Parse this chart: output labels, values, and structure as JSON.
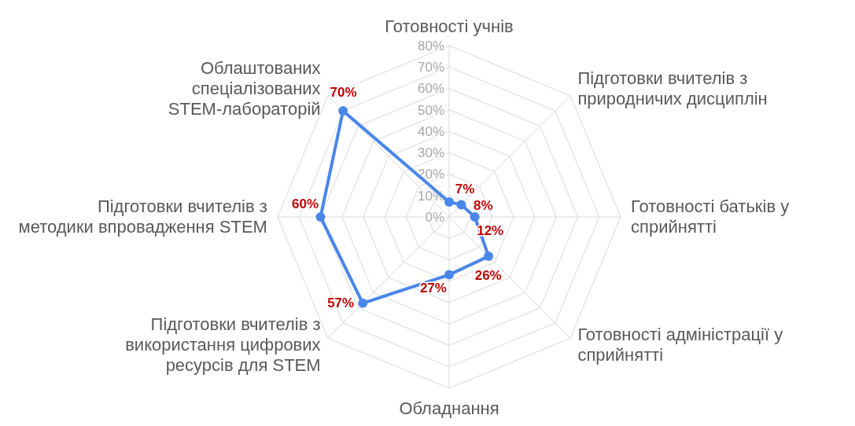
{
  "chart_data": {
    "type": "radar",
    "categories": [
      "Готовності учнів",
      "Підготовки вчителів з природничих дисциплін",
      "Готовності батьків у сприйнятті",
      "Готовності адміністрації у сприйнятті",
      "Обладнання",
      "Підготовки вчителів з використання цифрових ресурсів для STEM",
      "Підготовки вчителів з методики впровадження STEM",
      "Облаштованих спеціалізованих STEM-лабораторій"
    ],
    "series": [
      {
        "color": "#4a86e8",
        "values": [
          7,
          8,
          12,
          26,
          27,
          57,
          60,
          70
        ],
        "value_labels": [
          "7%",
          "8%",
          "12%",
          "26%",
          "27%",
          "57%",
          "60%",
          "70%"
        ]
      }
    ],
    "ylim": [
      0,
      80
    ],
    "yticks": [
      {
        "value": 0,
        "label": "0%"
      },
      {
        "value": 10,
        "label": "10%"
      },
      {
        "value": 20,
        "label": "20%"
      },
      {
        "value": 30,
        "label": "30%"
      },
      {
        "value": 40,
        "label": "40%"
      },
      {
        "value": 50,
        "label": "50%"
      },
      {
        "value": 60,
        "label": "60%"
      },
      {
        "value": 70,
        "label": "70%"
      },
      {
        "value": 80,
        "label": "80%"
      }
    ],
    "grid": true,
    "marker": "circle"
  }
}
